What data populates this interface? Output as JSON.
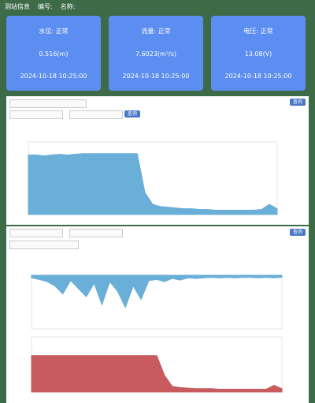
{
  "header": {
    "title": "测站信息",
    "code_label": "编号:",
    "name_label": "名称:"
  },
  "cards": [
    {
      "title": "水位: 正常",
      "value": "0.516(m)",
      "time": "2024-10-18 10:25:00"
    },
    {
      "title": "流量: 正常",
      "value": "7.6023(m³/s)",
      "time": "2024-10-18 10:25:00"
    },
    {
      "title": "电压: 正常",
      "value": "13.08(V)",
      "time": "2024-10-18 10:25:00"
    }
  ],
  "buttons": {
    "query": "查询"
  },
  "chart_data": [
    {
      "type": "area",
      "color": "#6aafd8",
      "ylim": [
        0,
        100
      ],
      "values": [
        82,
        82,
        81,
        82,
        83,
        82,
        83,
        84,
        84,
        84,
        84,
        84,
        84,
        84,
        84,
        30,
        14,
        11,
        10,
        9,
        8,
        8,
        7,
        7,
        6,
        6,
        6,
        6,
        6,
        6,
        7,
        14,
        8
      ]
    },
    {
      "type": "area",
      "inverted": true,
      "color": "#6aafd8",
      "ylim": [
        0,
        100
      ],
      "values": [
        5,
        8,
        12,
        20,
        35,
        10,
        25,
        40,
        15,
        55,
        12,
        30,
        60,
        20,
        45,
        10,
        8,
        12,
        6,
        9,
        5,
        6,
        5,
        4,
        5,
        4,
        5,
        4,
        4,
        5,
        4,
        5,
        4
      ]
    },
    {
      "type": "area",
      "color": "#c75b5e",
      "ylim": [
        0,
        100
      ],
      "values": [
        66,
        66,
        66,
        66,
        66,
        66,
        66,
        66,
        66,
        66,
        66,
        66,
        66,
        66,
        66,
        66,
        66,
        30,
        10,
        8,
        7,
        6,
        6,
        6,
        5,
        5,
        5,
        5,
        5,
        5,
        5,
        12,
        6
      ]
    }
  ]
}
